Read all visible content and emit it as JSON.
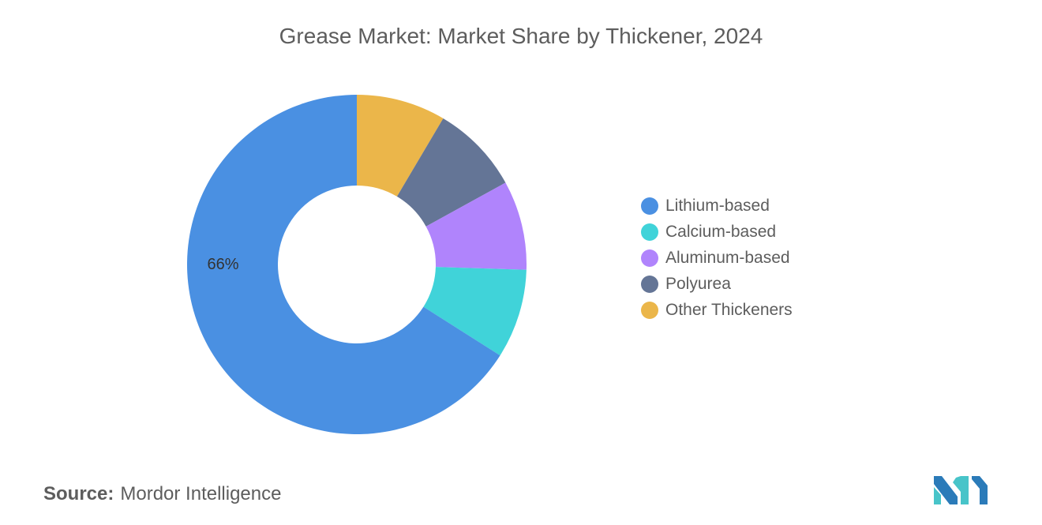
{
  "title": "Grease Market: Market Share by Thickener, 2024",
  "source": {
    "label": "Source:",
    "value": "Mordor Intelligence"
  },
  "logo": {
    "name": "mordor-intelligence-logo",
    "colors": [
      "#2b7bb9",
      "#48c4c9"
    ]
  },
  "chart_data": {
    "type": "pie",
    "subtype": "donut",
    "slices": [
      {
        "name": "Lithium-based",
        "value": 66,
        "label": "66%",
        "color": "#4a90e2"
      },
      {
        "name": "Calcium-based",
        "value": 8.5,
        "label": "",
        "color": "#40d3d9"
      },
      {
        "name": "Aluminum-based",
        "value": 8.5,
        "label": "",
        "color": "#b084fc"
      },
      {
        "name": "Polyurea",
        "value": 8.5,
        "label": "",
        "color": "#647596"
      },
      {
        "name": "Other Thickeners",
        "value": 8.5,
        "label": "",
        "color": "#ebb64a"
      }
    ],
    "legend_position": "right",
    "legend": [
      "Lithium-based",
      "Calcium-based",
      "Aluminum-based",
      "Polyurea",
      "Other Thickeners"
    ]
  }
}
